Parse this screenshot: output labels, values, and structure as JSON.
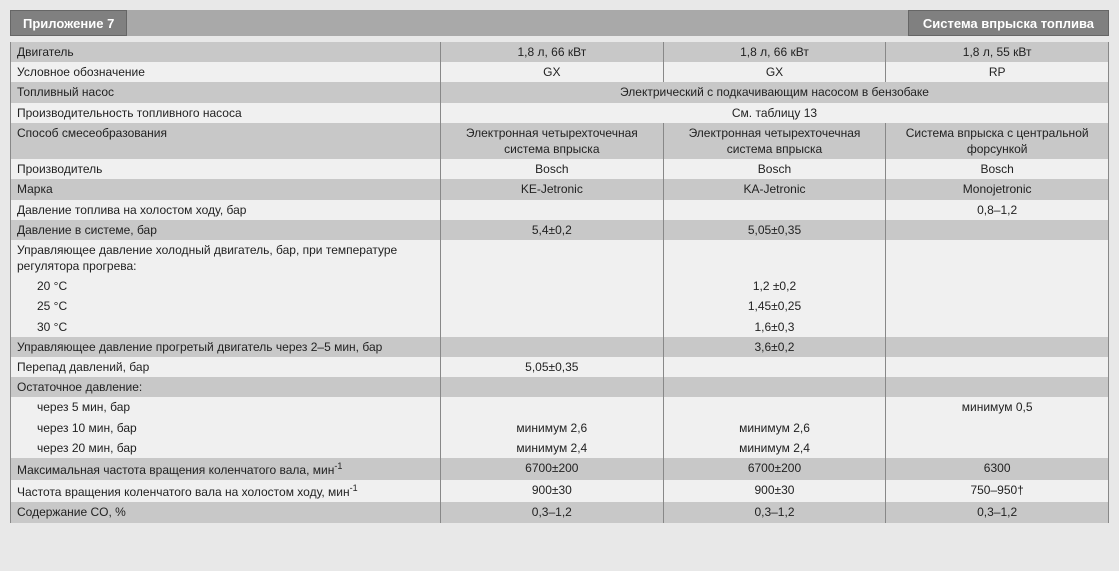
{
  "header": {
    "tab": "Приложение 7",
    "title": "Система впрыска топлива"
  },
  "cols": {
    "label_width": 430
  },
  "rows": [
    {
      "shade": "dark",
      "cells": [
        {
          "t": "Двигатель"
        },
        {
          "t": "1,8 л, 66 кВт",
          "c": "val"
        },
        {
          "t": "1,8 л, 66 кВт",
          "c": "val"
        },
        {
          "t": "1,8 л, 55 кВт",
          "c": "val"
        }
      ]
    },
    {
      "shade": "light",
      "cells": [
        {
          "t": "Условное обозначение"
        },
        {
          "t": "GX",
          "c": "val"
        },
        {
          "t": "GX",
          "c": "val"
        },
        {
          "t": "RP",
          "c": "val"
        }
      ]
    },
    {
      "shade": "dark",
      "cells": [
        {
          "t": "Топливный насос"
        },
        {
          "t": "Электрический с подкачивающим насосом в бензобаке",
          "c": "val merged",
          "span": 3
        }
      ]
    },
    {
      "shade": "light",
      "cells": [
        {
          "t": "Производительность топливного насоса"
        },
        {
          "t": "См. таблицу 13",
          "c": "val merged",
          "span": 3
        }
      ]
    },
    {
      "shade": "dark",
      "cells": [
        {
          "t": "Способ смесеобразования"
        },
        {
          "t": "Электронная четырехточечная система впрыска",
          "c": "val"
        },
        {
          "t": "Электронная четырехточечная система впрыска",
          "c": "val"
        },
        {
          "t": "Система впрыска с центральной форсункой",
          "c": "val"
        }
      ]
    },
    {
      "shade": "light",
      "cells": [
        {
          "t": "Производитель"
        },
        {
          "t": "Bosch",
          "c": "val"
        },
        {
          "t": "Bosch",
          "c": "val"
        },
        {
          "t": "Bosch",
          "c": "val"
        }
      ]
    },
    {
      "shade": "dark",
      "cells": [
        {
          "t": "Марка"
        },
        {
          "t": "KE-Jetronic",
          "c": "val"
        },
        {
          "t": "KA-Jetronic",
          "c": "val"
        },
        {
          "t": "Monojetronic",
          "c": "val"
        }
      ]
    },
    {
      "shade": "light",
      "cells": [
        {
          "t": "Давление топлива на холостом ходу, бар"
        },
        {
          "t": "",
          "c": "val"
        },
        {
          "t": "",
          "c": "val"
        },
        {
          "t": "0,8–1,2",
          "c": "val"
        }
      ]
    },
    {
      "shade": "dark",
      "cells": [
        {
          "t": "Давление в системе, бар"
        },
        {
          "t": "5,4±0,2",
          "c": "val"
        },
        {
          "t": "5,05±0,35",
          "c": "val"
        },
        {
          "t": "",
          "c": "val"
        }
      ]
    },
    {
      "shade": "light",
      "cells": [
        {
          "t": "Управляющее давление холодный двигатель, бар, при температуре регулятора прогрева:"
        },
        {
          "t": "",
          "c": "val"
        },
        {
          "t": "",
          "c": "val"
        },
        {
          "t": "",
          "c": "val"
        }
      ]
    },
    {
      "shade": "light",
      "cells": [
        {
          "t": "20 °C",
          "c": "indent"
        },
        {
          "t": "",
          "c": "val"
        },
        {
          "t": "1,2 ±0,2",
          "c": "val"
        },
        {
          "t": "",
          "c": "val"
        }
      ]
    },
    {
      "shade": "light",
      "cells": [
        {
          "t": "25 °C",
          "c": "indent"
        },
        {
          "t": "",
          "c": "val"
        },
        {
          "t": "1,45±0,25",
          "c": "val"
        },
        {
          "t": "",
          "c": "val"
        }
      ]
    },
    {
      "shade": "light",
      "cells": [
        {
          "t": "30 °C",
          "c": "indent"
        },
        {
          "t": "",
          "c": "val"
        },
        {
          "t": "1,6±0,3",
          "c": "val"
        },
        {
          "t": "",
          "c": "val"
        }
      ]
    },
    {
      "shade": "dark",
      "cells": [
        {
          "t": "Управляющее давление прогретый двигатель через 2–5 мин, бар"
        },
        {
          "t": "",
          "c": "val"
        },
        {
          "t": "3,6±0,2",
          "c": "val"
        },
        {
          "t": "",
          "c": "val"
        }
      ]
    },
    {
      "shade": "light",
      "cells": [
        {
          "t": "Перепад давлений, бар"
        },
        {
          "t": "5,05±0,35",
          "c": "val"
        },
        {
          "t": "",
          "c": "val"
        },
        {
          "t": "",
          "c": "val"
        }
      ]
    },
    {
      "shade": "dark",
      "cells": [
        {
          "t": "Остаточное давление:"
        },
        {
          "t": "",
          "c": "val"
        },
        {
          "t": "",
          "c": "val"
        },
        {
          "t": "",
          "c": "val"
        }
      ]
    },
    {
      "shade": "light",
      "cells": [
        {
          "t": "через 5 мин, бар",
          "c": "indent"
        },
        {
          "t": "",
          "c": "val"
        },
        {
          "t": "",
          "c": "val"
        },
        {
          "t": "минимум 0,5",
          "c": "val"
        }
      ]
    },
    {
      "shade": "light",
      "cells": [
        {
          "t": "через 10 мин, бар",
          "c": "indent"
        },
        {
          "t": "минимум 2,6",
          "c": "val"
        },
        {
          "t": "минимум 2,6",
          "c": "val"
        },
        {
          "t": "",
          "c": "val"
        }
      ]
    },
    {
      "shade": "light",
      "cells": [
        {
          "t": "через 20 мин, бар",
          "c": "indent"
        },
        {
          "t": "минимум 2,4",
          "c": "val"
        },
        {
          "t": "минимум 2,4",
          "c": "val"
        },
        {
          "t": "",
          "c": "val"
        }
      ]
    },
    {
      "shade": "dark",
      "cells": [
        {
          "html": "Максимальная частота вращения коленчатого вала, мин<sup>-1</sup>"
        },
        {
          "t": "6700±200",
          "c": "val"
        },
        {
          "t": "6700±200",
          "c": "val"
        },
        {
          "t": "6300",
          "c": "val"
        }
      ]
    },
    {
      "shade": "light",
      "cells": [
        {
          "html": "Частота вращения коленчатого вала на холостом ходу, мин<sup>-1</sup>"
        },
        {
          "t": "900±30",
          "c": "val"
        },
        {
          "t": "900±30",
          "c": "val"
        },
        {
          "t": "750–950†",
          "c": "val"
        }
      ]
    },
    {
      "shade": "dark",
      "cells": [
        {
          "t": "Содержание CO, %"
        },
        {
          "t": "0,3–1,2",
          "c": "val"
        },
        {
          "t": "0,3–1,2",
          "c": "val"
        },
        {
          "t": "0,3–1,2",
          "c": "val"
        }
      ]
    }
  ]
}
